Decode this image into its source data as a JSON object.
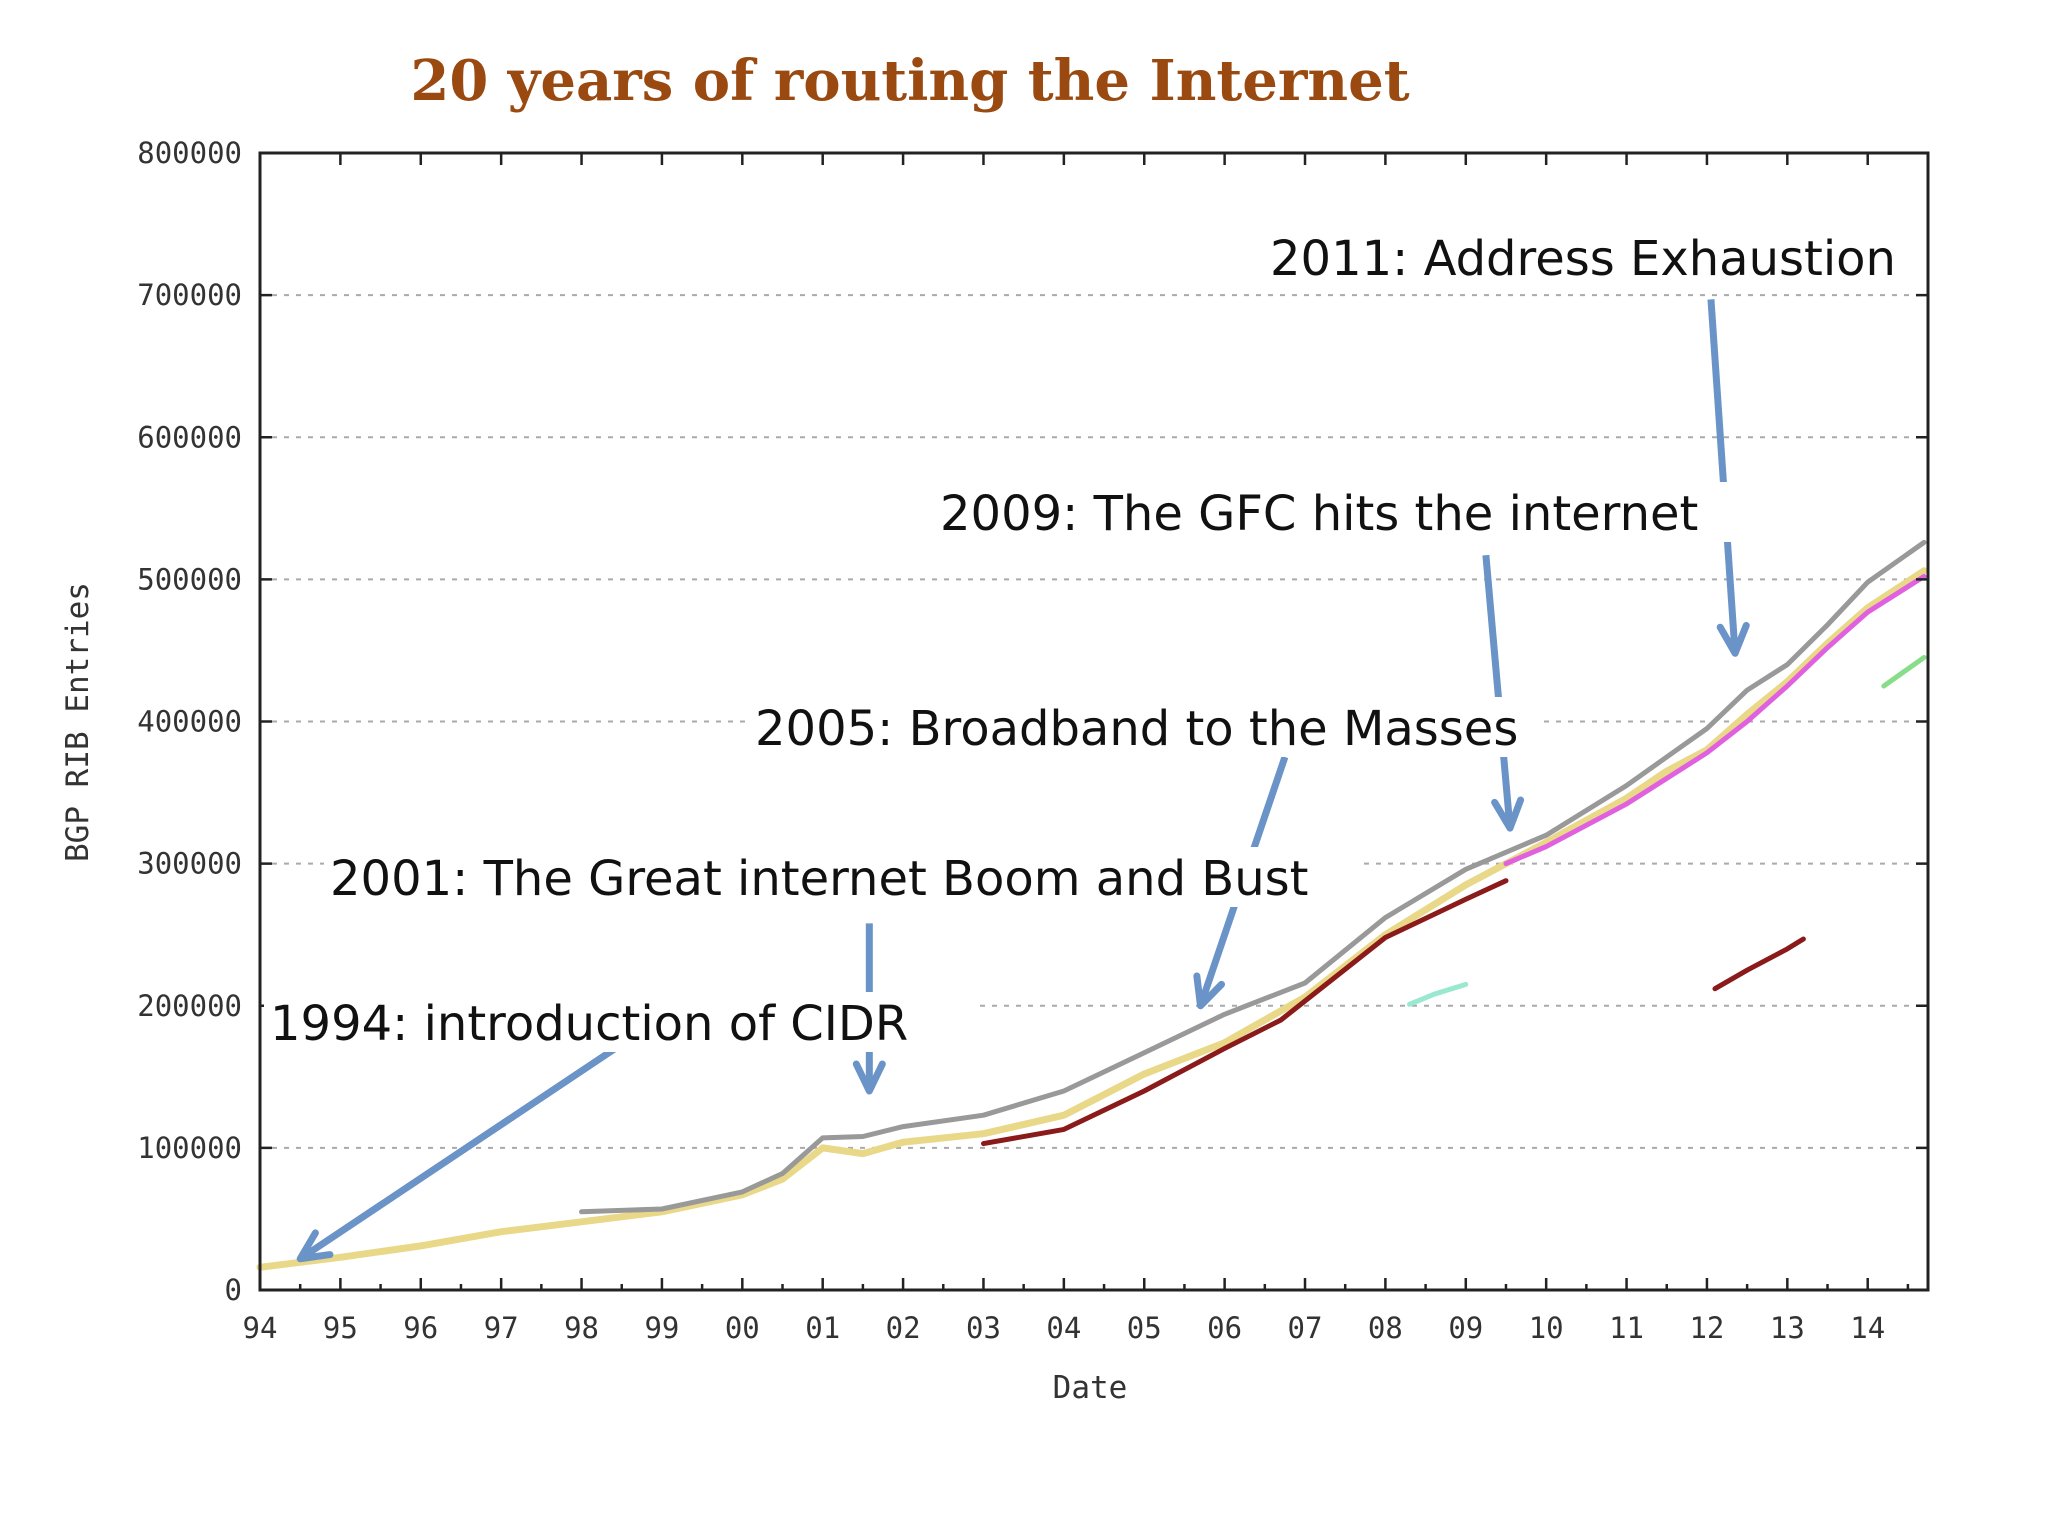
{
  "chart_data": {
    "type": "line",
    "title": "20 years of routing the Internet",
    "xlabel": "Date",
    "ylabel": "BGP RIB Entries",
    "xlim": [
      1994,
      2014.75
    ],
    "ylim": [
      0,
      800000
    ],
    "x_tick_labels": [
      "94",
      "95",
      "96",
      "97",
      "98",
      "99",
      "00",
      "01",
      "02",
      "03",
      "04",
      "05",
      "06",
      "07",
      "08",
      "09",
      "10",
      "11",
      "12",
      "13",
      "14"
    ],
    "y_tick_labels": [
      "0",
      "100000",
      "200000",
      "300000",
      "400000",
      "500000",
      "600000",
      "700000",
      "800000"
    ],
    "grid": true,
    "colors": {
      "title": "#9a4a10",
      "arrow": "#6a93c8",
      "grid": "#aaaaaa"
    },
    "series": [
      {
        "color": "#e8d888",
        "x": [
          1994,
          1995,
          1996,
          1997,
          1998,
          1999,
          2000,
          2000.5,
          2001,
          2001.5,
          2002,
          2003,
          2004,
          2005,
          2006,
          2007,
          2008,
          2009,
          2010,
          2011,
          2011.5,
          2012,
          2012.5,
          2013,
          2013.5,
          2014,
          2014.7
        ],
        "y": [
          16000,
          23000,
          31000,
          41000,
          48000,
          55000,
          67000,
          78000,
          100000,
          96000,
          104000,
          110000,
          123000,
          152000,
          174000,
          206000,
          250000,
          285000,
          315000,
          346000,
          365000,
          380000,
          405000,
          428000,
          455000,
          480000,
          506000
        ]
      },
      {
        "color": "#999999",
        "x": [
          1998,
          1999,
          2000,
          2000.5,
          2001,
          2001.5,
          2002,
          2003,
          2004,
          2005,
          2006,
          2007,
          2008,
          2009,
          2010,
          2011,
          2011.5,
          2012,
          2012.5,
          2013,
          2013.5,
          2014,
          2014.7
        ],
        "y": [
          55000,
          57000,
          69000,
          82000,
          107000,
          108000,
          115000,
          123000,
          140000,
          167000,
          194000,
          216000,
          262000,
          296000,
          320000,
          355000,
          375000,
          395000,
          422000,
          440000,
          468000,
          498000,
          526000
        ]
      },
      {
        "color": "#8b1a1a",
        "x": [
          2003,
          2004,
          2005,
          2006,
          2006.7,
          2008,
          2009,
          2009.5
        ],
        "y": [
          103000,
          113000,
          140000,
          170000,
          190000,
          248000,
          275000,
          288000
        ]
      },
      {
        "color": "#e060e0",
        "x": [
          2009.5,
          2010,
          2011,
          2012,
          2012.5,
          2013,
          2013.5,
          2014,
          2014.7
        ],
        "y": [
          300000,
          312000,
          342000,
          378000,
          400000,
          425000,
          452000,
          477000,
          502000
        ]
      },
      {
        "color": "#8b1a1a",
        "x": [
          2012.1,
          2012.5,
          2013,
          2013.2
        ],
        "y": [
          212000,
          225000,
          240000,
          247000
        ]
      },
      {
        "color": "#99e8d0",
        "x": [
          2008.3,
          2008.6,
          2009
        ],
        "y": [
          201000,
          208000,
          215000
        ]
      },
      {
        "color": "#88dd88",
        "x": [
          2014.2,
          2014.5,
          2014.7
        ],
        "y": [
          425000,
          437000,
          445000
        ]
      }
    ],
    "annotations": [
      {
        "text": "1994: introduction of CIDR",
        "arrow_from": [
          1998.5,
          173000
        ],
        "arrow_to": [
          1994.5,
          22000
        ]
      },
      {
        "text": "2001: The Great internet Boom and Bust",
        "arrow_from": [
          2001.58,
          258000
        ],
        "arrow_to": [
          2001.58,
          140000
        ]
      },
      {
        "text": "2005: Broadband to the Masses",
        "arrow_from": [
          2006.75,
          375000
        ],
        "arrow_to": [
          2005.7,
          200000
        ]
      },
      {
        "text": "2009: The GFC hits the internet",
        "arrow_from": [
          2009.25,
          517000
        ],
        "arrow_to": [
          2009.55,
          325000
        ]
      },
      {
        "text": "2011: Address Exhaustion",
        "arrow_from": [
          2012.05,
          697000
        ],
        "arrow_to": [
          2012.35,
          448000
        ]
      }
    ]
  }
}
